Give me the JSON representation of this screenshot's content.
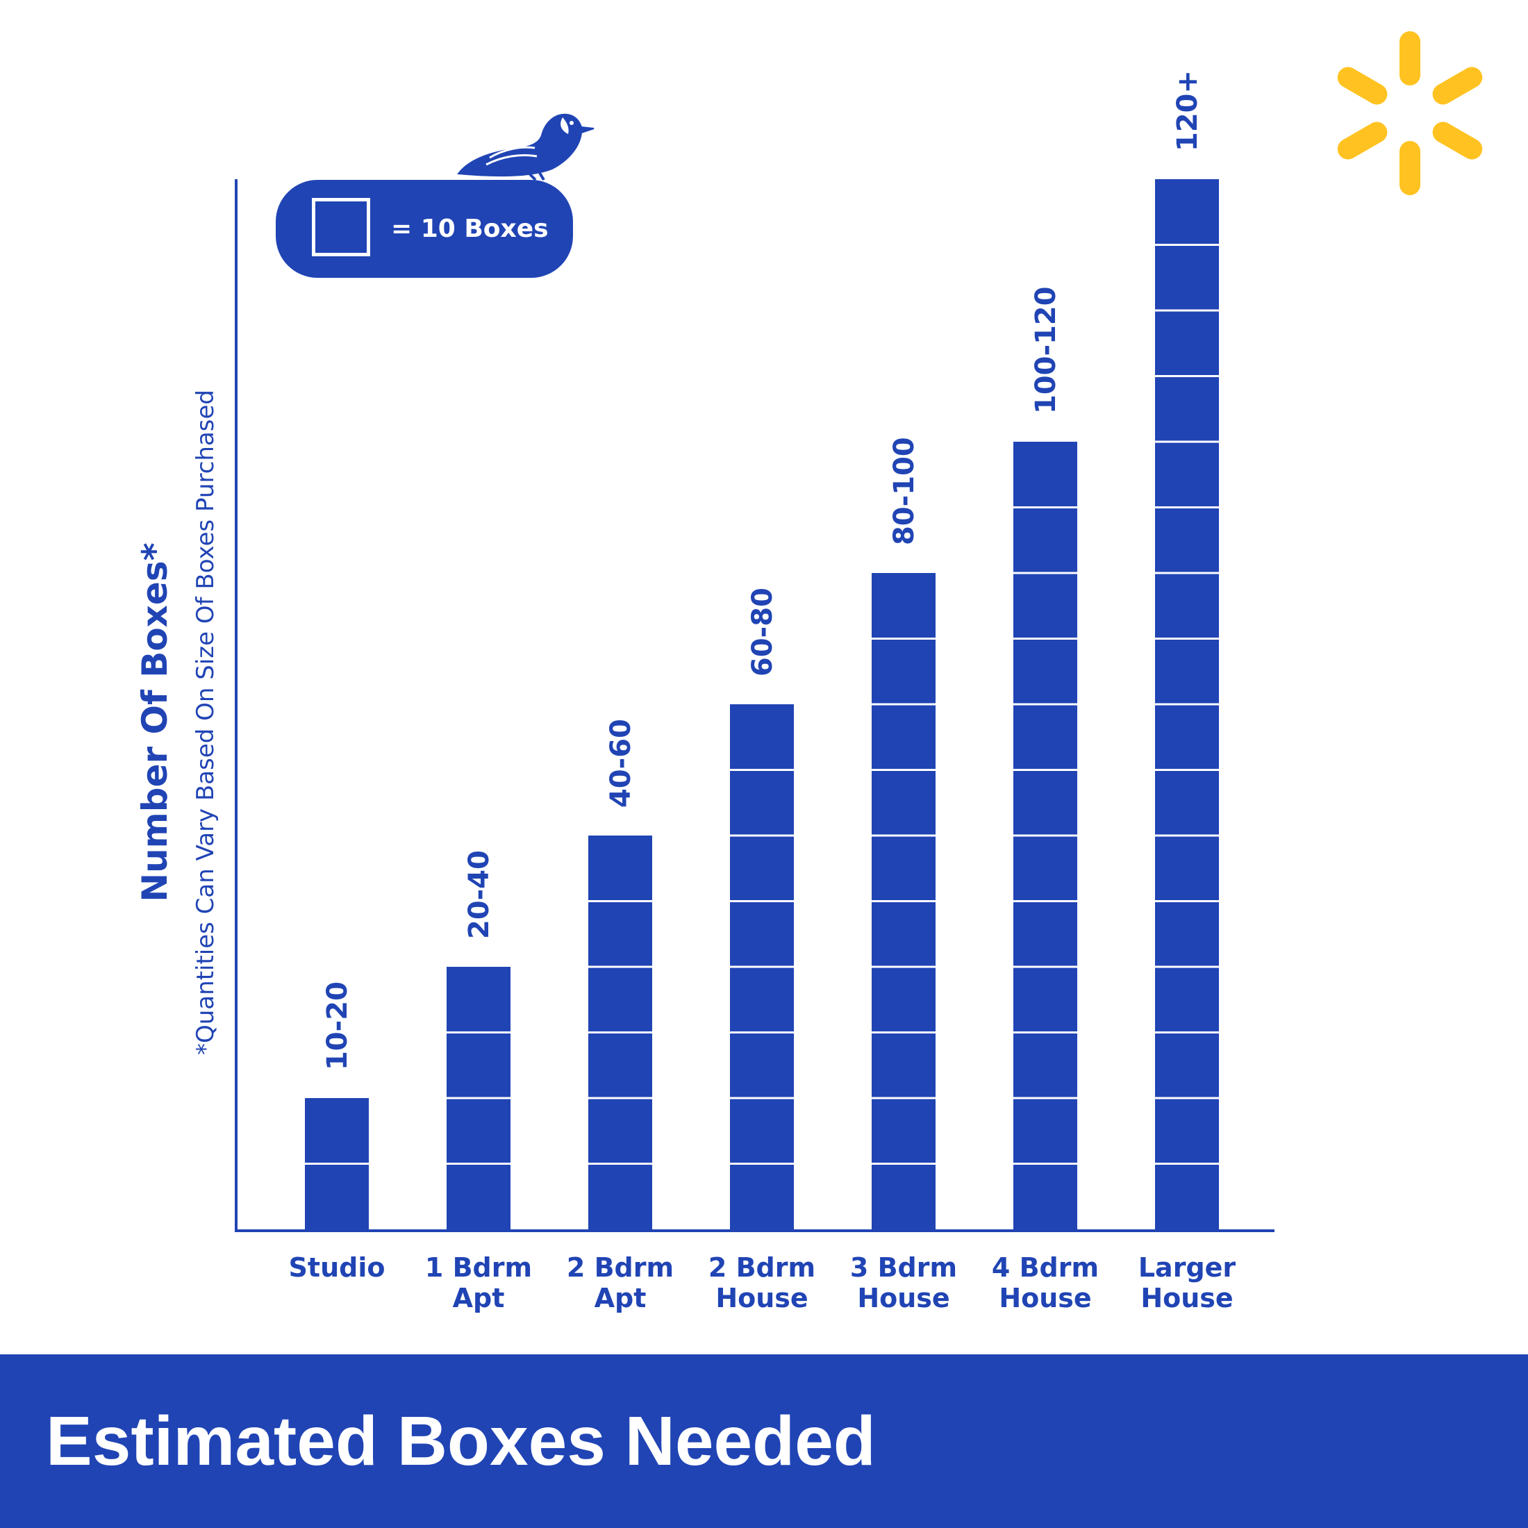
{
  "chart_data": {
    "type": "bar",
    "title": "Estimated Boxes Needed",
    "ylabel": "Number Of Boxes*",
    "ynote": "*Quantities Can Vary Based On Size Of Boxes Purchased",
    "legend": {
      "label": "= 10 Boxes",
      "placement": "top-left"
    },
    "unit_per_box": 10,
    "ylim": [
      0,
      160
    ],
    "grid": false,
    "categories": [
      [
        "Studio"
      ],
      [
        "1 Bdrm",
        "Apt"
      ],
      [
        "2 Bdrm",
        "Apt"
      ],
      [
        "2 Bdrm",
        "House"
      ],
      [
        "3 Bdrm",
        "House"
      ],
      [
        "4 Bdrm",
        "House"
      ],
      [
        "Larger",
        "House"
      ]
    ],
    "values": [
      20,
      40,
      60,
      80,
      100,
      120,
      160
    ],
    "value_labels": [
      "10-20",
      "20-40",
      "40-60",
      "60-80",
      "80-100",
      "100-120",
      "120+"
    ]
  },
  "colors": {
    "primary": "#2044b4",
    "background": "#ffffff",
    "accent": "#ffc220",
    "separator": "#ffffff"
  },
  "icons": [
    "bird-icon",
    "spark-logo-icon"
  ]
}
